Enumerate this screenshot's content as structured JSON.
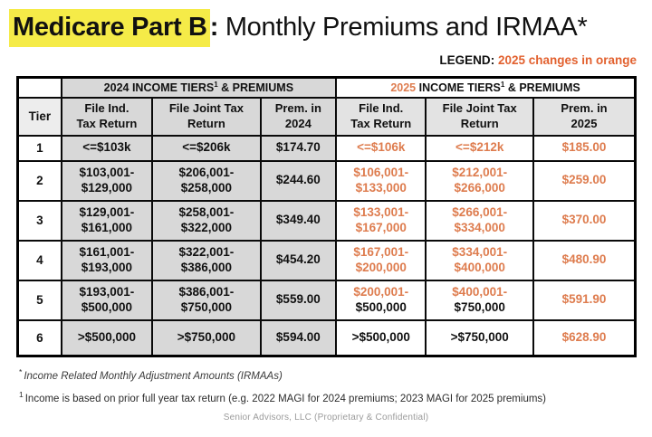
{
  "title": {
    "highlight": "Medicare Part B",
    "colon": ":",
    "rest": " Monthly Premiums and IRMAA*"
  },
  "legend": {
    "label": "LEGEND",
    "separator": ": ",
    "text": "2025 changes in orange"
  },
  "table": {
    "header_2024": {
      "pre": "2024 INCOME TIERS",
      "sup": "1",
      "post": " & PREMIUMS"
    },
    "header_2025": {
      "year": "2025",
      "pre": " INCOME TIERS",
      "sup": "1",
      "post": " & PREMIUMS"
    },
    "columns": {
      "tier": "Tier",
      "ind_2024": [
        "File Ind.",
        "Tax Return"
      ],
      "joint_2024": [
        "File Joint Tax",
        "Return"
      ],
      "prem_2024": [
        "Prem. in",
        "2024"
      ],
      "ind_2025": [
        "File Ind.",
        "Tax Return"
      ],
      "joint_2025": [
        "File Joint Tax",
        "Return"
      ],
      "prem_2025": [
        "Prem. in",
        "2025"
      ]
    },
    "rows": [
      {
        "tier": "1",
        "cells": [
          [
            {
              "t": "<=$103k",
              "c": "k"
            }
          ],
          [
            {
              "t": "<=$206k",
              "c": "k"
            }
          ],
          [
            {
              "t": "$174.70",
              "c": "k"
            }
          ],
          [
            {
              "t": "<=$106k",
              "c": "o"
            }
          ],
          [
            {
              "t": "<=$212k",
              "c": "o"
            }
          ],
          [
            {
              "t": "$185.00",
              "c": "o"
            }
          ]
        ]
      },
      {
        "tier": "2",
        "cells": [
          [
            {
              "t": "$103,001-",
              "c": "k"
            },
            {
              "t": "$129,000",
              "c": "k"
            }
          ],
          [
            {
              "t": "$206,001-",
              "c": "k"
            },
            {
              "t": "$258,000",
              "c": "k"
            }
          ],
          [
            {
              "t": "$244.60",
              "c": "k"
            }
          ],
          [
            {
              "t": "$106,001-",
              "c": "o"
            },
            {
              "t": "$133,000",
              "c": "o"
            }
          ],
          [
            {
              "t": "$212,001-",
              "c": "o"
            },
            {
              "t": "$266,000",
              "c": "o"
            }
          ],
          [
            {
              "t": "$259.00",
              "c": "o"
            }
          ]
        ]
      },
      {
        "tier": "3",
        "cells": [
          [
            {
              "t": "$129,001-",
              "c": "k"
            },
            {
              "t": "$161,000",
              "c": "k"
            }
          ],
          [
            {
              "t": "$258,001-",
              "c": "k"
            },
            {
              "t": "$322,000",
              "c": "k"
            }
          ],
          [
            {
              "t": "$349.40",
              "c": "k"
            }
          ],
          [
            {
              "t": "$133,001-",
              "c": "o"
            },
            {
              "t": "$167,000",
              "c": "o"
            }
          ],
          [
            {
              "t": "$266,001-",
              "c": "o"
            },
            {
              "t": "$334,000",
              "c": "o"
            }
          ],
          [
            {
              "t": "$370.00",
              "c": "o"
            }
          ]
        ]
      },
      {
        "tier": "4",
        "cells": [
          [
            {
              "t": "$161,001-",
              "c": "k"
            },
            {
              "t": "$193,000",
              "c": "k"
            }
          ],
          [
            {
              "t": "$322,001-",
              "c": "k"
            },
            {
              "t": "$386,000",
              "c": "k"
            }
          ],
          [
            {
              "t": "$454.20",
              "c": "k"
            }
          ],
          [
            {
              "t": "$167,001-",
              "c": "o"
            },
            {
              "t": "$200,000",
              "c": "o"
            }
          ],
          [
            {
              "t": "$334,001-",
              "c": "o"
            },
            {
              "t": "$400,000",
              "c": "o"
            }
          ],
          [
            {
              "t": "$480.90",
              "c": "o"
            }
          ]
        ]
      },
      {
        "tier": "5",
        "cells": [
          [
            {
              "t": "$193,001-",
              "c": "k"
            },
            {
              "t": "$500,000",
              "c": "k"
            }
          ],
          [
            {
              "t": "$386,001-",
              "c": "k"
            },
            {
              "t": "$750,000",
              "c": "k"
            }
          ],
          [
            {
              "t": "$559.00",
              "c": "k"
            }
          ],
          [
            {
              "t": "$200,001-",
              "c": "o"
            },
            {
              "t": "$500,000",
              "c": "k"
            }
          ],
          [
            {
              "t": "$400,001-",
              "c": "o"
            },
            {
              "t": "$750,000",
              "c": "k"
            }
          ],
          [
            {
              "t": "$591.90",
              "c": "o"
            }
          ]
        ]
      },
      {
        "tier": "6",
        "cells": [
          [
            {
              "t": ">$500,000",
              "c": "k"
            }
          ],
          [
            {
              "t": ">$750,000",
              "c": "k"
            }
          ],
          [
            {
              "t": "$594.00",
              "c": "k"
            }
          ],
          [
            {
              "t": ">$500,000",
              "c": "k"
            }
          ],
          [
            {
              "t": ">$750,000",
              "c": "k"
            }
          ],
          [
            {
              "t": "$628.90",
              "c": "o"
            }
          ]
        ]
      }
    ]
  },
  "footnotes": [
    {
      "marker": "*",
      "text": "Income Related Monthly Adjustment Amounts (IRMAAs)"
    },
    {
      "marker": "1",
      "text": "Income is based on prior full year tax return (e.g. 2022 MAGI for 2024 premiums; 2023 MAGI for 2025 premiums)"
    }
  ],
  "footer": "Senior Advisors, LLC (Proprietary & Confidential)",
  "colors": {
    "highlight_yellow": "#F5EB48",
    "legend_orange": "#E2612F",
    "table_orange": "#DE7C4E",
    "gray_cell": "#D8D8D8",
    "border_black": "#0a0a0a"
  }
}
